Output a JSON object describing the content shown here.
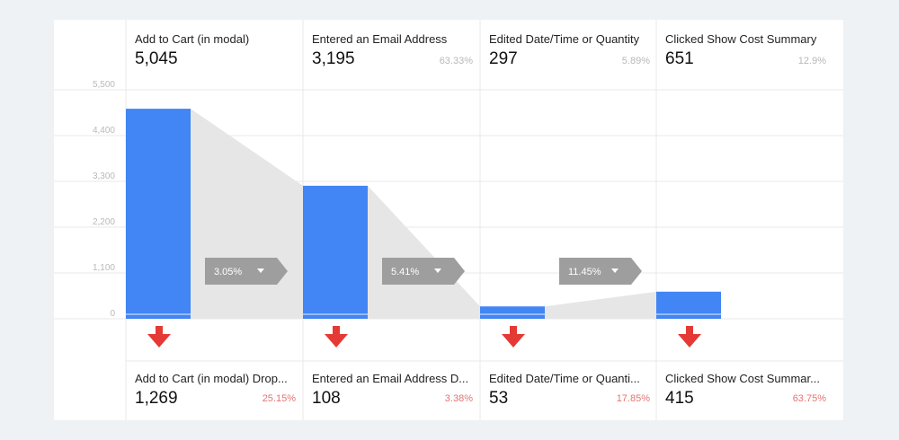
{
  "chart_data": {
    "type": "bar",
    "subtype": "funnel",
    "y_ticks": [
      "5,500",
      "4,400",
      "3,300",
      "2,200",
      "1,100",
      "0"
    ],
    "ylim": [
      0,
      5500
    ],
    "stages": [
      {
        "label": "Add to Cart (in modal)",
        "value_text": "5,045",
        "value": 5045,
        "pct": "",
        "dropoff_label": "Add to Cart (in modal) Drop...",
        "dropoff_value_text": "1,269",
        "dropoff_value": 1269,
        "dropoff_pct": "25.15%"
      },
      {
        "label": "Entered an Email Address",
        "value_text": "3,195",
        "value": 3195,
        "pct": "63.33%",
        "dropoff_label": "Entered an Email Address D...",
        "dropoff_value_text": "108",
        "dropoff_value": 108,
        "dropoff_pct": "3.38%"
      },
      {
        "label": "Edited Date/Time or Quantity",
        "value_text": "297",
        "value": 297,
        "pct": "5.89%",
        "dropoff_label": "Edited Date/Time or Quanti...",
        "dropoff_value_text": "53",
        "dropoff_value": 53,
        "dropoff_pct": "17.85%"
      },
      {
        "label": "Clicked Show Cost Summary",
        "value_text": "651",
        "value": 651,
        "pct": "12.9%",
        "dropoff_label": "Clicked Show Cost Summar...",
        "dropoff_value_text": "415",
        "dropoff_value": 415,
        "dropoff_pct": "63.75%"
      }
    ],
    "conversion_badges": [
      "3.05%",
      "5.41%",
      "11.45%"
    ],
    "colors": {
      "bar": "#4285f4",
      "funnel_shade": "#e6e6e6",
      "badge": "#9e9e9e",
      "dropoff_arrow": "#e53935",
      "grid": "#e8e8e8"
    }
  }
}
